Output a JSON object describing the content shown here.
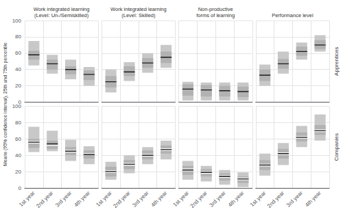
{
  "chart_data": [
    {
      "type": "bar",
      "title": "Work integrated learning\n(Level: Un-/Semiskilled)",
      "ylabel": "Means (95% confidence interval), 25th und 75th percentile",
      "categories": [
        null,
        null,
        null,
        null
      ],
      "ylim": [
        0,
        100
      ],
      "yticks": [
        0,
        20,
        40,
        60,
        80,
        100
      ],
      "grid": true,
      "tick_labels": "y",
      "series": [
        {
          "type": "range",
          "color": "#c8c8c8",
          "low": [
            45,
            35,
            28,
            20
          ],
          "high": [
            75,
            58,
            52,
            43
          ]
        },
        {
          "type": "range",
          "color": "#b2b2b2",
          "low": [
            52,
            40,
            34,
            27
          ],
          "high": [
            63,
            52,
            44,
            39
          ]
        },
        {
          "type": "tick",
          "color": "#1a1a1a",
          "values": [
            58,
            47,
            40,
            34
          ]
        }
      ]
    },
    {
      "type": "bar",
      "title": "Work integrated learning\n(Level: Skilled)",
      "categories": [
        null,
        null,
        null,
        null
      ],
      "ylim": [
        0,
        100
      ],
      "yticks": [
        0,
        20,
        40,
        60,
        80,
        100
      ],
      "grid": true,
      "tick_labels": false,
      "series": [
        {
          "type": "range",
          "color": "#c8c8c8",
          "low": [
            12,
            26,
            36,
            42
          ],
          "high": [
            40,
            49,
            60,
            70
          ]
        },
        {
          "type": "range",
          "color": "#b2b2b2",
          "low": [
            18,
            32,
            42,
            48
          ],
          "high": [
            32,
            44,
            54,
            62
          ]
        },
        {
          "type": "tick",
          "color": "#1a1a1a",
          "values": [
            25,
            37,
            48,
            55
          ]
        }
      ]
    },
    {
      "type": "bar",
      "title": "Non-productive\nforms of learning",
      "categories": [
        null,
        null,
        null,
        null
      ],
      "ylim": [
        0,
        100
      ],
      "yticks": [
        0,
        20,
        40,
        60,
        80,
        100
      ],
      "grid": true,
      "tick_labels": false,
      "series": [
        {
          "type": "range",
          "color": "#c8c8c8",
          "low": [
            2,
            2,
            2,
            2
          ],
          "high": [
            25,
            24,
            24,
            24
          ]
        },
        {
          "type": "range",
          "color": "#b2b2b2",
          "low": [
            8,
            7,
            7,
            6
          ],
          "high": [
            22,
            21,
            20,
            19
          ]
        },
        {
          "type": "tick",
          "color": "#1a1a1a",
          "values": [
            16,
            15,
            14,
            13
          ]
        }
      ]
    },
    {
      "type": "bar",
      "title": "Performance level",
      "annotation": "Apprentices",
      "categories": [
        null,
        null,
        null,
        null
      ],
      "ylim": [
        0,
        100
      ],
      "yticks": [
        0,
        20,
        40,
        60,
        80,
        100
      ],
      "grid": true,
      "tick_labels": false,
      "series": [
        {
          "type": "range",
          "color": "#c8c8c8",
          "low": [
            20,
            35,
            52,
            62
          ],
          "high": [
            46,
            62,
            73,
            82
          ]
        },
        {
          "type": "range",
          "color": "#b2b2b2",
          "low": [
            26,
            41,
            57,
            65
          ],
          "high": [
            40,
            53,
            68,
            76
          ]
        },
        {
          "type": "tick",
          "color": "#1a1a1a",
          "values": [
            33,
            47,
            62,
            70
          ]
        }
      ]
    },
    {
      "type": "bar",
      "categories": [
        "1st year",
        "2nd year",
        "3rd year",
        "4th year"
      ],
      "ylim": [
        0,
        100
      ],
      "yticks": [
        0,
        20,
        40,
        60,
        80,
        100
      ],
      "grid": true,
      "series": [
        {
          "type": "range",
          "color": "#c8c8c8",
          "low": [
            44,
            45,
            33,
            29
          ],
          "high": [
            75,
            70,
            59,
            51
          ]
        },
        {
          "type": "range",
          "color": "#b2b2b2",
          "low": [
            49,
            48,
            40,
            36
          ],
          "high": [
            60,
            58,
            50,
            46
          ]
        },
        {
          "type": "tick",
          "color": "#ffffff",
          "values": [
            55,
            52,
            46,
            41
          ]
        },
        {
          "type": "tick",
          "color": "#ffffff",
          "values": [
            57,
            54,
            44,
            42
          ]
        },
        {
          "type": "tick",
          "color": "#1a1a1a",
          "values": [
            56,
            54,
            45,
            41
          ]
        }
      ]
    },
    {
      "type": "bar",
      "categories": [
        "1st year",
        "2nd year",
        "3rd year",
        "4th year"
      ],
      "ylim": [
        0,
        100
      ],
      "yticks": [
        0,
        20,
        40,
        60,
        80,
        100
      ],
      "grid": true,
      "tick_labels": "x",
      "series": [
        {
          "type": "range",
          "color": "#c8c8c8",
          "low": [
            10,
            18,
            29,
            35
          ],
          "high": [
            32,
            40,
            50,
            58
          ]
        },
        {
          "type": "range",
          "color": "#b2b2b2",
          "low": [
            14,
            23,
            35,
            42
          ],
          "high": [
            26,
            34,
            46,
            52
          ]
        },
        {
          "type": "tick",
          "color": "#ffffff",
          "values": [
            19,
            28,
            41,
            46
          ]
        },
        {
          "type": "tick",
          "color": "#ffffff",
          "values": [
            21,
            30,
            39,
            48
          ]
        },
        {
          "type": "tick",
          "color": "#1a1a1a",
          "values": [
            20,
            29,
            40,
            47
          ]
        }
      ]
    },
    {
      "type": "bar",
      "categories": [
        "1st year",
        "2nd year",
        "3rd year",
        "4th year"
      ],
      "ylim": [
        0,
        100
      ],
      "yticks": [
        0,
        20,
        40,
        60,
        80,
        100
      ],
      "grid": true,
      "tick_labels": "x",
      "series": [
        {
          "type": "range",
          "color": "#c8c8c8",
          "low": [
            10,
            8,
            4,
            1
          ],
          "high": [
            33,
            27,
            22,
            19
          ]
        },
        {
          "type": "range",
          "color": "#b2b2b2",
          "low": [
            16,
            14,
            9,
            6
          ],
          "high": [
            27,
            23,
            18,
            14
          ]
        },
        {
          "type": "tick",
          "color": "#ffffff",
          "values": [
            21,
            18,
            13,
            10
          ]
        },
        {
          "type": "tick",
          "color": "#ffffff",
          "values": [
            23,
            20,
            15,
            12
          ]
        },
        {
          "type": "tick",
          "color": "#1a1a1a",
          "values": [
            22,
            19,
            14,
            11
          ]
        }
      ]
    },
    {
      "type": "bar",
      "annotation": "Companies",
      "categories": [
        "1st year",
        "2nd year",
        "3rd year",
        "4th year"
      ],
      "ylim": [
        0,
        100
      ],
      "yticks": [
        0,
        20,
        40,
        60,
        80,
        100
      ],
      "grid": true,
      "tick_labels": "x",
      "series": [
        {
          "type": "range",
          "color": "#c8c8c8",
          "low": [
            15,
            28,
            50,
            58
          ],
          "high": [
            42,
            55,
            76,
            90
          ]
        },
        {
          "type": "range",
          "color": "#b2b2b2",
          "low": [
            22,
            36,
            57,
            65
          ],
          "high": [
            34,
            48,
            68,
            77
          ]
        },
        {
          "type": "tick",
          "color": "#ffffff",
          "values": [
            27,
            41,
            61,
            69
          ]
        },
        {
          "type": "tick",
          "color": "#ffffff",
          "values": [
            29,
            43,
            63,
            71
          ]
        },
        {
          "type": "tick",
          "color": "#1a1a1a",
          "values": [
            28,
            42,
            62,
            70
          ]
        }
      ]
    }
  ]
}
